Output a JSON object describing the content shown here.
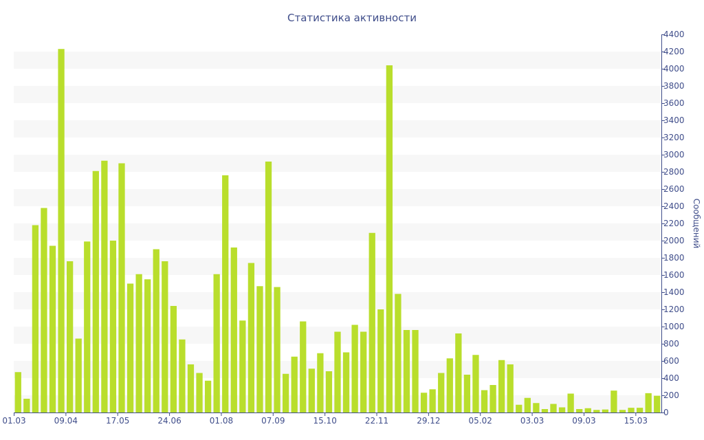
{
  "chart_data": {
    "type": "bar",
    "title": "Статистика активности",
    "xlabel": "",
    "ylabel": "Сообщений",
    "ylim": [
      0,
      4400
    ],
    "y_ticks": [
      0,
      200,
      400,
      600,
      800,
      1000,
      1200,
      1400,
      1600,
      1800,
      2000,
      2200,
      2400,
      2600,
      2800,
      3000,
      3200,
      3400,
      3600,
      3800,
      4000,
      4200,
      4400
    ],
    "y_axis_position": "right",
    "grid": "alternating horizontal bands",
    "x_tick_labels": [
      {
        "index": 0,
        "label": "01.03"
      },
      {
        "index": 6,
        "label": "09.04"
      },
      {
        "index": 12,
        "label": "17.05"
      },
      {
        "index": 18,
        "label": "24.06"
      },
      {
        "index": 24,
        "label": "01.08"
      },
      {
        "index": 30,
        "label": "07.09"
      },
      {
        "index": 36,
        "label": "15.10"
      },
      {
        "index": 42,
        "label": "22.11"
      },
      {
        "index": 48,
        "label": "29.12"
      },
      {
        "index": 54,
        "label": "05.02"
      },
      {
        "index": 60,
        "label": "03.03"
      },
      {
        "index": 66,
        "label": "09.03"
      },
      {
        "index": 72,
        "label": "15.03"
      }
    ],
    "values": [
      470,
      160,
      2180,
      2380,
      1940,
      4230,
      1760,
      860,
      1990,
      2810,
      2930,
      2000,
      2900,
      1500,
      1610,
      1550,
      1900,
      1760,
      1240,
      850,
      560,
      460,
      370,
      1610,
      2760,
      1920,
      1070,
      1740,
      1470,
      2920,
      1460,
      450,
      650,
      1060,
      510,
      690,
      480,
      940,
      700,
      1020,
      940,
      2090,
      1200,
      4040,
      1380,
      960,
      960,
      230,
      270,
      460,
      630,
      920,
      440,
      670,
      260,
      320,
      610,
      560,
      90,
      170,
      110,
      40,
      100,
      60,
      220,
      40,
      50,
      30,
      35,
      255,
      30,
      55,
      55,
      225,
      195
    ],
    "bar_color": "#b9de2c",
    "axis_color": "#3f4d8a",
    "band_color": "#f7f7f7"
  }
}
